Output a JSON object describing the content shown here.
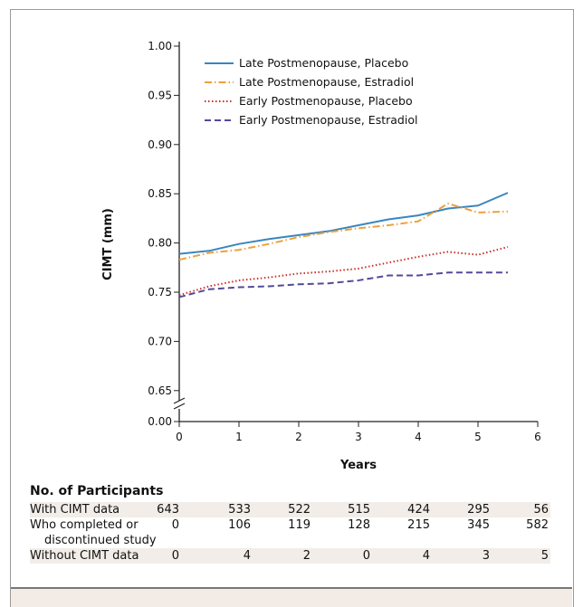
{
  "chart_data": {
    "type": "line",
    "xlabel": "Years",
    "ylabel": "CIMT (mm)",
    "xlim": [
      0,
      6
    ],
    "ylim": [
      0.65,
      1.0
    ],
    "y_break": true,
    "xticks": [
      "0",
      "1",
      "2",
      "3",
      "4",
      "5",
      "6"
    ],
    "yticks": [
      "1.00",
      "0.95",
      "0.90",
      "0.85",
      "0.80",
      "0.75",
      "0.70",
      "0.65",
      "0.00"
    ],
    "legend_position": "top",
    "x": [
      0,
      0.5,
      1,
      1.5,
      2,
      2.5,
      3,
      3.5,
      4,
      4.5,
      5,
      5.5
    ],
    "series": [
      {
        "name": "Late Postmenopause, Placebo",
        "color": "#3a86c0",
        "style": "solid",
        "values": [
          0.789,
          0.792,
          0.799,
          0.804,
          0.808,
          0.812,
          0.818,
          0.824,
          0.828,
          0.835,
          0.838,
          0.851
        ]
      },
      {
        "name": "Late Postmenopause, Estradiol",
        "color": "#f0a03a",
        "style": "dashdot",
        "values": [
          0.783,
          0.79,
          0.793,
          0.799,
          0.806,
          0.811,
          0.815,
          0.818,
          0.822,
          0.84,
          0.831,
          0.832
        ]
      },
      {
        "name": "Early Postmenopause, Placebo",
        "color": "#c8302a",
        "style": "dotted",
        "values": [
          0.747,
          0.756,
          0.762,
          0.765,
          0.769,
          0.771,
          0.774,
          0.78,
          0.786,
          0.791,
          0.788,
          0.796
        ]
      },
      {
        "name": "Early Postmenopause, Estradiol",
        "color": "#524a9a",
        "style": "dashed",
        "values": [
          0.745,
          0.753,
          0.755,
          0.756,
          0.758,
          0.759,
          0.762,
          0.767,
          0.767,
          0.77,
          0.77,
          0.77
        ]
      }
    ]
  },
  "participants": {
    "title": "No. of Participants",
    "rows": [
      {
        "label": "With CIMT data",
        "values": [
          "643",
          "533",
          "522",
          "515",
          "424",
          "295",
          "56"
        ]
      },
      {
        "label": "Who completed or",
        "label2": "discontinued study",
        "values": [
          "0",
          "106",
          "119",
          "128",
          "215",
          "345",
          "582"
        ]
      },
      {
        "label": "Without CIMT data",
        "values": [
          "0",
          "4",
          "2",
          "0",
          "4",
          "3",
          "5"
        ]
      }
    ]
  }
}
